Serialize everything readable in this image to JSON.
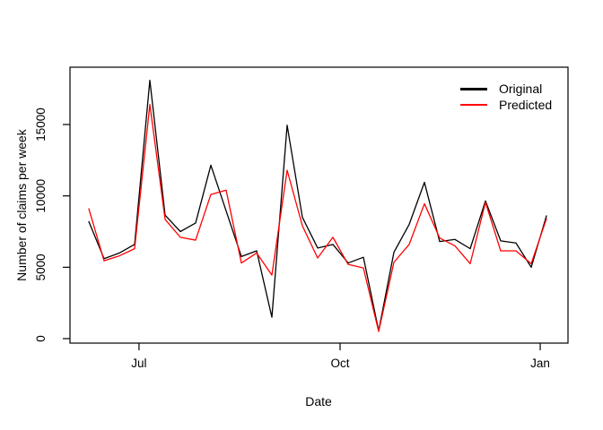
{
  "chart_data": {
    "type": "line",
    "title": "",
    "xlabel": "Date",
    "ylabel": "Number of claims per week",
    "grid": false,
    "x_unit": "weeks (one point per week)",
    "x_tick_labels": [
      "Jul",
      "Oct",
      "Jan"
    ],
    "x_tick_positions_week": [
      3.29,
      16.47,
      29.59
    ],
    "y_ticks": [
      0,
      5000,
      10000,
      15000
    ],
    "y_tick_labels": [
      "0",
      "5000",
      "10000",
      "15000"
    ],
    "ylim": [
      -300,
      19000
    ],
    "legend": {
      "position": "topright",
      "boxed": false,
      "entries": [
        {
          "label": "Original",
          "color": "#000000"
        },
        {
          "label": "Predicted",
          "color": "#ff0000"
        }
      ]
    },
    "series": [
      {
        "name": "Original",
        "color": "#000000",
        "values": [
          8200,
          5600,
          6000,
          6600,
          18100,
          8650,
          7500,
          8100,
          12150,
          8950,
          5750,
          6150,
          1500,
          14950,
          8500,
          6350,
          6600,
          5300,
          5700,
          550,
          6050,
          8000,
          10950,
          6800,
          6950,
          6300,
          9650,
          6850,
          6700,
          5000,
          8600
        ]
      },
      {
        "name": "Predicted",
        "color": "#ff0000",
        "values": [
          9100,
          5450,
          5800,
          6300,
          16400,
          8350,
          7100,
          6900,
          10100,
          10400,
          5300,
          6000,
          4450,
          11800,
          7900,
          5650,
          7100,
          5200,
          4950,
          500,
          5350,
          6600,
          9450,
          7050,
          6500,
          5250,
          9550,
          6150,
          6150,
          5250,
          8400
        ]
      }
    ]
  }
}
